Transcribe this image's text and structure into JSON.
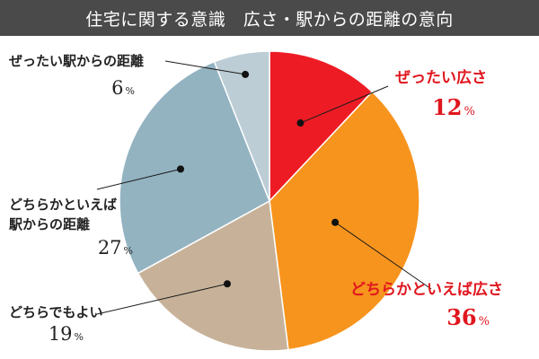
{
  "header": {
    "title": "住宅に関する意識　広さ・駅からの距離の意向"
  },
  "chart_data": {
    "type": "pie",
    "title": "住宅に関する意識　広さ・駅からの距離の意向",
    "unit": "%",
    "slices": [
      {
        "label_lines": [
          "ぜったい広さ"
        ],
        "value": 12,
        "color": "#ed1c24",
        "label_color": "#e0161e"
      },
      {
        "label_lines": [
          "どちらかといえば広さ"
        ],
        "value": 36,
        "color": "#f7941d",
        "label_color": "#e0161e"
      },
      {
        "label_lines": [
          "どちらでもよい"
        ],
        "value": 19,
        "color": "#c7b299",
        "label_color": "#222222"
      },
      {
        "label_lines": [
          "どちらかといえば",
          "駅からの距離"
        ],
        "value": 27,
        "color": "#93b3c1",
        "label_color": "#222222"
      },
      {
        "label_lines": [
          "ぜったい駅からの距離"
        ],
        "value": 6,
        "color": "#bccdd6",
        "label_color": "#222222"
      }
    ]
  }
}
